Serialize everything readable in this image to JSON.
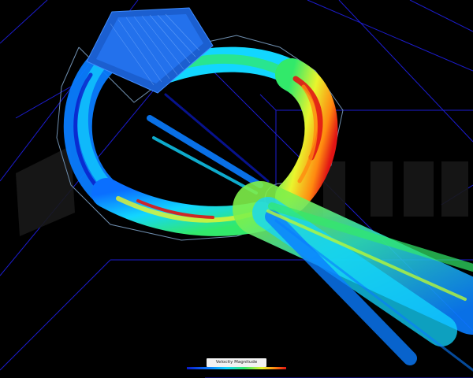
{
  "viewport": {
    "background": "#000000",
    "watermark_icon": "brand-logo-watermark"
  },
  "colormap": {
    "colors": [
      "#0a19c8",
      "#0a7cff",
      "#12d6ff",
      "#32e96a",
      "#e9f52d",
      "#ff8a10",
      "#e11414"
    ]
  },
  "legend": {
    "title": "Velocity Magnitude"
  }
}
